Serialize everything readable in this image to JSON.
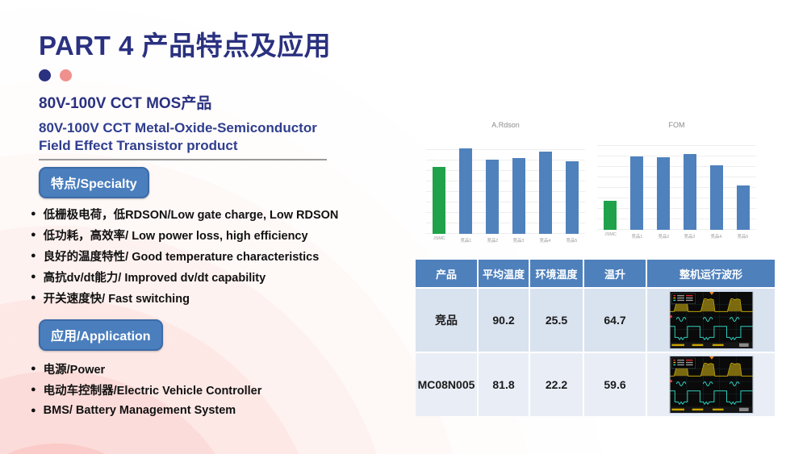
{
  "slide": {
    "title": "PART 4 产品特点及应用",
    "subtitle_cn": "80V-100V CCT MOS产品",
    "subtitle_en_line1": "80V-100V CCT Metal-Oxide-Semiconductor",
    "subtitle_en_line2": "Field Effect Transistor product"
  },
  "specialty": {
    "label": "特点/Specialty",
    "items": [
      "低栅极电荷，低RDSON/Low gate charge, Low RDSON",
      "低功耗，高效率/ Low power loss, high efficiency",
      "良好的温度特性/ Good temperature characteristics",
      "高抗dv/dt能力/ Improved dv/dt capability",
      "开关速度快/ Fast switching"
    ]
  },
  "application": {
    "label": "应用/Application",
    "items": [
      "电源/Power",
      "电动车控制器/Electric Vehicle Controller",
      "BMS/ Battery Management System"
    ]
  },
  "chart_data": [
    {
      "type": "bar",
      "title": "A.Rdson",
      "categories": [
        "JSMC",
        "竞品1",
        "竞品2",
        "竞品3",
        "竞品4",
        "竞品5"
      ],
      "values": [
        0.71,
        0.91,
        0.79,
        0.8,
        0.87,
        0.77
      ],
      "bar_colors": [
        "#1fa24a",
        "#4f81bd",
        "#4f81bd",
        "#4f81bd",
        "#4f81bd",
        "#4f81bd"
      ],
      "xlabel": "",
      "ylabel": "",
      "ylim": [
        0,
        1
      ],
      "grid": true,
      "legend_position": "none"
    },
    {
      "type": "bar",
      "title": "FOM",
      "categories": [
        "JSMC",
        "竞品1",
        "竞品2",
        "竞品3",
        "竞品4",
        "竞品5"
      ],
      "values": [
        0.32,
        0.81,
        0.8,
        0.84,
        0.71,
        0.49
      ],
      "bar_colors": [
        "#1fa24a",
        "#4f81bd",
        "#4f81bd",
        "#4f81bd",
        "#4f81bd",
        "#4f81bd"
      ],
      "xlabel": "",
      "ylabel": "",
      "ylim": [
        0,
        1
      ],
      "grid": true,
      "legend_position": "none"
    }
  ],
  "table": {
    "headers": [
      "产品",
      "平均温度",
      "环境温度",
      "温升",
      "整机运行波形"
    ],
    "rows": [
      {
        "product": "竞品",
        "avg_temp": "90.2",
        "ambient_temp": "25.5",
        "temp_rise": "64.7",
        "waveform_icon": "oscilloscope-waveform"
      },
      {
        "product": "MC08N005",
        "avg_temp": "81.8",
        "ambient_temp": "22.2",
        "temp_rise": "59.6",
        "waveform_icon": "oscilloscope-waveform"
      }
    ]
  },
  "colors": {
    "title_navy": "#2a3180",
    "accent_pink": "#f0908d",
    "badge_blue": "#4a7ebd",
    "chart_green": "#1fa24a",
    "chart_blue": "#4f81bd",
    "table_header_blue": "#4e80bc",
    "table_row_odd": "#d9e2ef",
    "table_row_even": "#e9eef6"
  }
}
